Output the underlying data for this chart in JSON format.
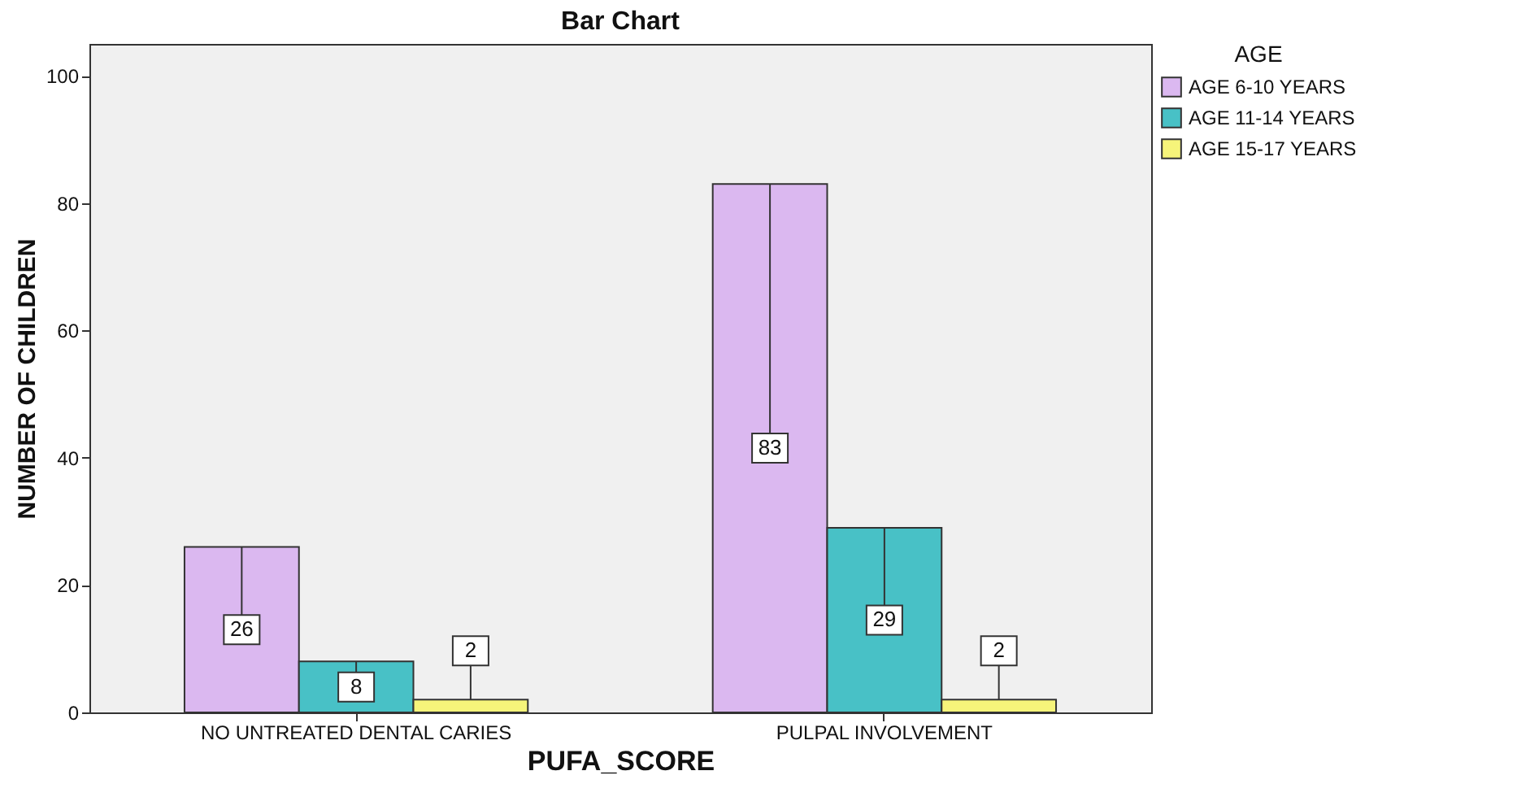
{
  "chart_data": {
    "type": "bar",
    "title": "Bar Chart",
    "xlabel": "PUFA_SCORE",
    "ylabel": "NUMBER OF CHILDREN",
    "legend_title": "AGE",
    "categories": [
      "NO UNTREATED DENTAL CARIES",
      "PULPAL INVOLVEMENT"
    ],
    "series": [
      {
        "name": "AGE 6-10 YEARS",
        "color": "#dbb8f0",
        "values": [
          26,
          83
        ]
      },
      {
        "name": "AGE 11-14 YEARS",
        "color": "#48c1c6",
        "values": [
          8,
          29
        ]
      },
      {
        "name": "AGE 15-17 YEARS",
        "color": "#f6f47a",
        "values": [
          2,
          2
        ]
      }
    ],
    "ylim": [
      0,
      105
    ],
    "yticks": [
      0,
      20,
      40,
      60,
      80,
      100
    ],
    "data_labels": true,
    "legend": "top right"
  }
}
